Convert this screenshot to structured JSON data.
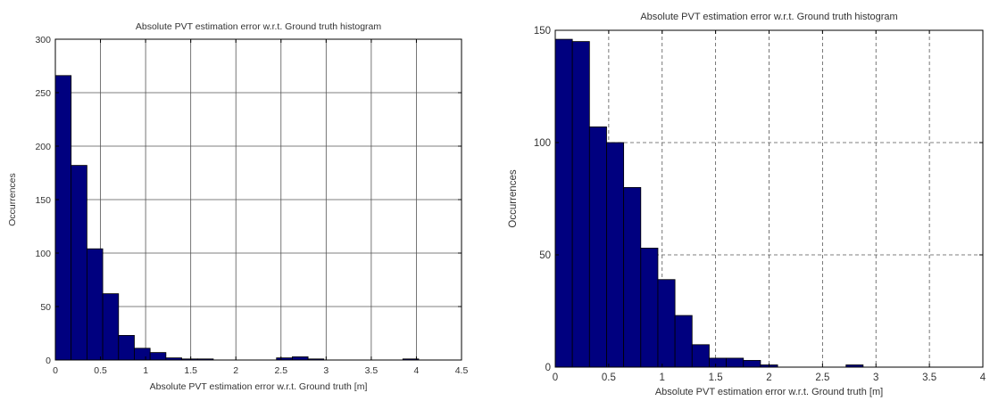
{
  "chart_data": [
    {
      "type": "bar",
      "title": "Absolute PVT estimation error w.r.t. Ground truth histogram",
      "xlabel": "Absolute PVT estimation error w.r.t. Ground truth [m]",
      "ylabel": "Occurrences",
      "xlim": [
        0,
        4.5
      ],
      "ylim": [
        0,
        300
      ],
      "xticks": [
        0,
        0.5,
        1,
        1.5,
        2,
        2.5,
        3,
        3.5,
        4,
        4.5
      ],
      "xtick_labels": [
        "0",
        "0.5",
        "1",
        "1.5",
        "2",
        "2.5",
        "3",
        "3.5",
        "4",
        "4.5"
      ],
      "yticks": [
        0,
        50,
        100,
        150,
        200,
        250,
        300
      ],
      "ytick_labels": [
        "0",
        "50",
        "100",
        "150",
        "200",
        "250",
        "300"
      ],
      "grid": true,
      "bar_color": "#00007f",
      "bin_width": 0.175,
      "bins": [
        {
          "x0": 0.0,
          "value": 266
        },
        {
          "x0": 0.175,
          "value": 182
        },
        {
          "x0": 0.35,
          "value": 104
        },
        {
          "x0": 0.525,
          "value": 62
        },
        {
          "x0": 0.7,
          "value": 23
        },
        {
          "x0": 0.875,
          "value": 11
        },
        {
          "x0": 1.05,
          "value": 7
        },
        {
          "x0": 1.225,
          "value": 2
        },
        {
          "x0": 1.4,
          "value": 1
        },
        {
          "x0": 1.575,
          "value": 1
        },
        {
          "x0": 2.45,
          "value": 2
        },
        {
          "x0": 2.625,
          "value": 3
        },
        {
          "x0": 2.8,
          "value": 1
        },
        {
          "x0": 3.85,
          "value": 1
        }
      ]
    },
    {
      "type": "bar",
      "title": "Absolute PVT estimation error w.r.t. Ground truth histogram",
      "xlabel": "Absolute PVT estimation error w.r.t. Ground truth [m]",
      "ylabel": "Occurrences",
      "xlim": [
        0,
        4
      ],
      "ylim": [
        0,
        150
      ],
      "xticks": [
        0,
        0.5,
        1,
        1.5,
        2,
        2.5,
        3,
        3.5,
        4
      ],
      "xtick_labels": [
        "0",
        "0.5",
        "1",
        "1.5",
        "2",
        "2.5",
        "3",
        "3.5",
        "4"
      ],
      "yticks": [
        0,
        50,
        100,
        150
      ],
      "ytick_labels": [
        "0",
        "50",
        "100",
        "150"
      ],
      "grid": true,
      "bar_color": "#00007f",
      "bin_width": 0.16,
      "bins": [
        {
          "x0": 0.0,
          "value": 146
        },
        {
          "x0": 0.16,
          "value": 145
        },
        {
          "x0": 0.32,
          "value": 107
        },
        {
          "x0": 0.48,
          "value": 100
        },
        {
          "x0": 0.64,
          "value": 80
        },
        {
          "x0": 0.8,
          "value": 53
        },
        {
          "x0": 0.96,
          "value": 39
        },
        {
          "x0": 1.12,
          "value": 23
        },
        {
          "x0": 1.28,
          "value": 10
        },
        {
          "x0": 1.44,
          "value": 4
        },
        {
          "x0": 1.6,
          "value": 4
        },
        {
          "x0": 1.76,
          "value": 3
        },
        {
          "x0": 1.92,
          "value": 1
        },
        {
          "x0": 2.08,
          "value": 0
        },
        {
          "x0": 2.24,
          "value": 0
        },
        {
          "x0": 2.4,
          "value": 0
        },
        {
          "x0": 2.56,
          "value": 0
        },
        {
          "x0": 2.72,
          "value": 1
        }
      ]
    }
  ]
}
